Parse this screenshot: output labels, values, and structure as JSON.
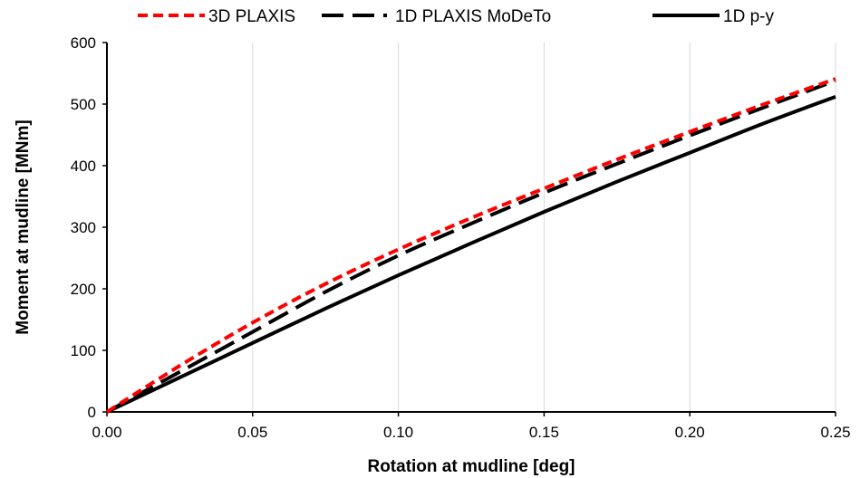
{
  "chart_data": {
    "type": "line",
    "title": "",
    "xlabel": "Rotation at mudline [deg]",
    "ylabel": "Moment at mudline [MNm]",
    "xlim": [
      0,
      0.25
    ],
    "ylim": [
      0,
      600
    ],
    "x_ticks": [
      "0.00",
      "0.05",
      "0.10",
      "0.15",
      "0.20",
      "0.25"
    ],
    "y_ticks": [
      "0",
      "100",
      "200",
      "300",
      "400",
      "500",
      "600"
    ],
    "grid": "vertical",
    "legend_position": "top",
    "series": [
      {
        "name": "3D PLAXIS",
        "color": "#ff0000",
        "dash": "dashed",
        "x": [
          0,
          0.025,
          0.05,
          0.075,
          0.1,
          0.125,
          0.15,
          0.175,
          0.2,
          0.225,
          0.25
        ],
        "y": [
          0,
          75,
          145,
          208,
          264,
          315,
          363,
          410,
          455,
          499,
          541
        ]
      },
      {
        "name": "1D PLAXIS MoDeTo",
        "color": "#000000",
        "dash": "long-dash",
        "x": [
          0,
          0.025,
          0.05,
          0.075,
          0.1,
          0.125,
          0.15,
          0.175,
          0.2,
          0.225,
          0.25
        ],
        "y": [
          0,
          65,
          130,
          195,
          254,
          306,
          356,
          403,
          449,
          494,
          538
        ]
      },
      {
        "name": "1D p-y",
        "color": "#000000",
        "dash": "solid",
        "x": [
          0,
          0.025,
          0.05,
          0.075,
          0.1,
          0.125,
          0.15,
          0.175,
          0.2,
          0.225,
          0.25
        ],
        "y": [
          0,
          56,
          112,
          168,
          222,
          274,
          325,
          374,
          421,
          468,
          512
        ]
      }
    ]
  }
}
